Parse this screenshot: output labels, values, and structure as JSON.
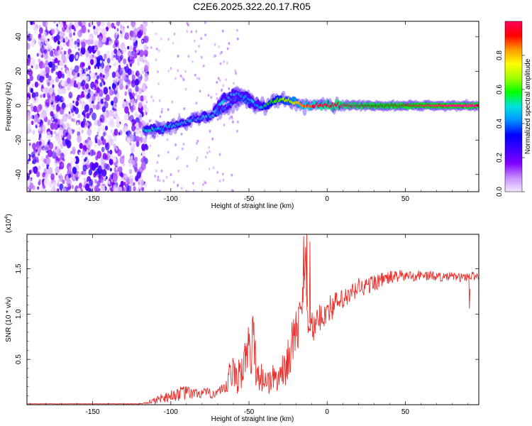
{
  "title": "C2E6.2025.322.20.17.R05",
  "chart_data": [
    {
      "type": "heatmap",
      "title": "C2E6.2025.322.20.17.R05",
      "xlabel": "Height of straight line (km)",
      "ylabel": "Frequency (Hz)",
      "xlim": [
        -192,
        97
      ],
      "ylim": [
        -50,
        49
      ],
      "xticks": [
        -150,
        -100,
        -50,
        0,
        50
      ],
      "yticks": [
        -40,
        -20,
        0,
        20,
        40
      ],
      "colorbar": {
        "label": "Normalized spectral amplitude",
        "range": [
          0,
          1
        ],
        "ticks": [
          "0.0",
          "0.2",
          "0.4",
          "0.6",
          "0.8"
        ],
        "tick_values": [
          0.0,
          0.2,
          0.4,
          0.6,
          0.8
        ],
        "colors": [
          "#f3e6ff",
          "#c58cff",
          "#8000ff",
          "#3f00ff",
          "#0000ff",
          "#0090ff",
          "#00e0e0",
          "#00ff00",
          "#a0ff00",
          "#ffff00",
          "#ff9900",
          "#ff0000",
          "#ff0060"
        ]
      },
      "noise_region_x": [
        -192,
        -117
      ],
      "signal_track": {
        "x": [
          -117,
          -105,
          -95,
          -85,
          -75,
          -68,
          -62,
          -55,
          -50,
          -45,
          -40,
          -35,
          -30,
          -25,
          -20,
          -15,
          -10,
          0,
          10,
          30,
          50,
          70,
          97
        ],
        "freq": [
          -14,
          -13,
          -11,
          -8,
          -6,
          -3,
          1,
          4,
          2,
          0,
          -1,
          2,
          4,
          3,
          2,
          0,
          0,
          0,
          0,
          0,
          0,
          0,
          0
        ],
        "amplitude": [
          0.45,
          0.4,
          0.45,
          0.4,
          0.45,
          0.4,
          0.4,
          0.35,
          0.45,
          0.5,
          0.5,
          0.55,
          0.6,
          0.65,
          0.7,
          0.8,
          0.85,
          0.9,
          0.92,
          0.95,
          0.95,
          0.95,
          0.95
        ]
      },
      "secondary_track": {
        "x": [
          -72,
          -66,
          -58,
          -52,
          -46,
          -42
        ],
        "freq": [
          -3,
          4,
          7,
          5,
          1,
          -1
        ]
      }
    },
    {
      "type": "line",
      "xlabel": "Height of straight line (km)",
      "ylabel": "SNR (10 * v/v)",
      "multiplier_label": "(x10",
      "multiplier_exponent": "4",
      "multiplier_suffix": ")",
      "xlim": [
        -192,
        97
      ],
      "ylim": [
        0,
        1.88
      ],
      "xticks": [
        -150,
        -100,
        -50,
        0,
        50
      ],
      "yticks": [
        0.5,
        1.0,
        1.5
      ],
      "ytick_labels": [
        "0.5",
        "1.0",
        "1.5"
      ],
      "series": [
        {
          "name": "SNR",
          "color": "#e8302c",
          "x": [
            -192,
            -150,
            -120,
            -115,
            -110,
            -105,
            -100,
            -95,
            -90,
            -85,
            -80,
            -75,
            -70,
            -65,
            -62,
            -58,
            -55,
            -52,
            -50,
            -47,
            -45,
            -42,
            -40,
            -37,
            -35,
            -32,
            -30,
            -27,
            -25,
            -22,
            -20,
            -18,
            -16,
            -14,
            -13,
            -12,
            -10,
            -8,
            -5,
            -2,
            0,
            5,
            10,
            15,
            20,
            25,
            30,
            35,
            40,
            45,
            50,
            55,
            60,
            65,
            70,
            75,
            80,
            85,
            90,
            97
          ],
          "y": [
            0.01,
            0.01,
            0.01,
            0.02,
            0.05,
            0.08,
            0.1,
            0.12,
            0.13,
            0.12,
            0.13,
            0.12,
            0.14,
            0.15,
            0.35,
            0.3,
            0.4,
            0.5,
            0.6,
            0.7,
            0.35,
            0.3,
            0.28,
            0.25,
            0.3,
            0.28,
            0.35,
            0.4,
            0.5,
            0.7,
            0.8,
            0.9,
            1.1,
            1.75,
            1.2,
            0.95,
            0.85,
            0.85,
            0.95,
            1.0,
            1.05,
            1.1,
            1.15,
            1.2,
            1.3,
            1.3,
            1.35,
            1.38,
            1.4,
            1.42,
            1.42,
            1.42,
            1.43,
            1.42,
            1.42,
            1.4,
            1.42,
            1.4,
            1.42,
            1.42
          ],
          "noise_amplitude": [
            0.002,
            0.002,
            0.003,
            0.01,
            0.04,
            0.06,
            0.06,
            0.08,
            0.08,
            0.06,
            0.06,
            0.06,
            0.06,
            0.08,
            0.2,
            0.2,
            0.25,
            0.25,
            0.3,
            0.35,
            0.2,
            0.18,
            0.15,
            0.15,
            0.15,
            0.15,
            0.15,
            0.2,
            0.25,
            0.25,
            0.25,
            0.25,
            0.25,
            0.3,
            0.25,
            0.2,
            0.18,
            0.15,
            0.15,
            0.15,
            0.15,
            0.15,
            0.12,
            0.12,
            0.12,
            0.1,
            0.1,
            0.08,
            0.08,
            0.07,
            0.06,
            0.06,
            0.06,
            0.06,
            0.05,
            0.05,
            0.05,
            0.05,
            0.05,
            0.05
          ]
        }
      ],
      "spikes": [
        {
          "x": -15,
          "y": 1.86
        },
        {
          "x": -13,
          "y": 1.88
        },
        {
          "x": -11,
          "y": 1.8
        },
        {
          "x": 91,
          "y": 1.06
        }
      ]
    }
  ]
}
